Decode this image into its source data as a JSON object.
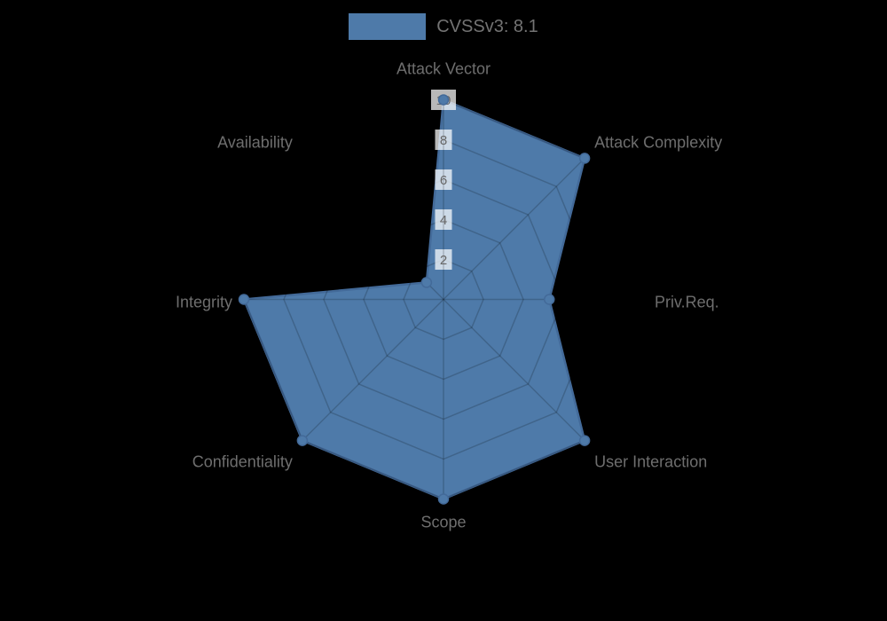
{
  "page": {
    "background": "#000000"
  },
  "legend": {
    "label": "CVSSv3: 8.1",
    "swatch_color": "#4e7aa9"
  },
  "chart_data": {
    "type": "radar",
    "title": "CVSSv3: 8.1",
    "categories": [
      "Attack Vector",
      "Attack Complexity",
      "Priv.Req.",
      "User Interaction",
      "Scope",
      "Confidentiality",
      "Integrity",
      "Availability"
    ],
    "series": [
      {
        "name": "CVSSv3: 8.1",
        "values": [
          10,
          10,
          5.3,
          10,
          10,
          10,
          10,
          1.2
        ]
      }
    ],
    "rmin": 0,
    "rmax": 10,
    "radial_ticks": [
      2,
      4,
      6,
      8,
      10
    ],
    "grid": true,
    "legend_position": "top",
    "colors": {
      "fill": "#4e7aa9",
      "stroke": "#436a99",
      "grid_line": "rgba(0,0,0,0.18)",
      "tick_text": "#666666",
      "tick_backdrop": "rgba(255,255,255,0.72)",
      "point_label": "#6e6e6e",
      "legend_text": "#737373",
      "background": "#000000"
    }
  }
}
